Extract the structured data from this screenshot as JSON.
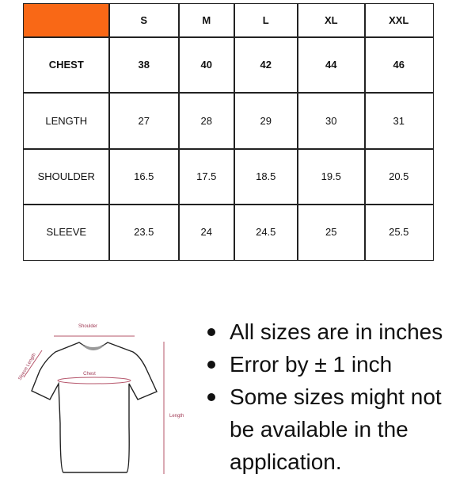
{
  "header_color": "#F96816",
  "table": {
    "columns": [
      "S",
      "M",
      "L",
      "XL",
      "XXL"
    ],
    "rows": [
      {
        "label": "CHEST",
        "values": [
          "38",
          "40",
          "42",
          "44",
          "46"
        ]
      },
      {
        "label": "LENGTH",
        "values": [
          "27",
          "28",
          "29",
          "30",
          "31"
        ]
      },
      {
        "label": "SHOULDER",
        "values": [
          "16.5",
          "17.5",
          "18.5",
          "19.5",
          "20.5"
        ]
      },
      {
        "label": "SLEEVE",
        "values": [
          "23.5",
          "24",
          "24.5",
          "25",
          "25.5"
        ]
      }
    ]
  },
  "diagram": {
    "shoulder": "Shoulder",
    "chest": "Chest",
    "sleeve": "Sleeve Length",
    "length": "Length"
  },
  "notes": [
    "All sizes are in inches",
    "Error by ± 1 inch",
    "Some sizes might not be available in the application."
  ]
}
